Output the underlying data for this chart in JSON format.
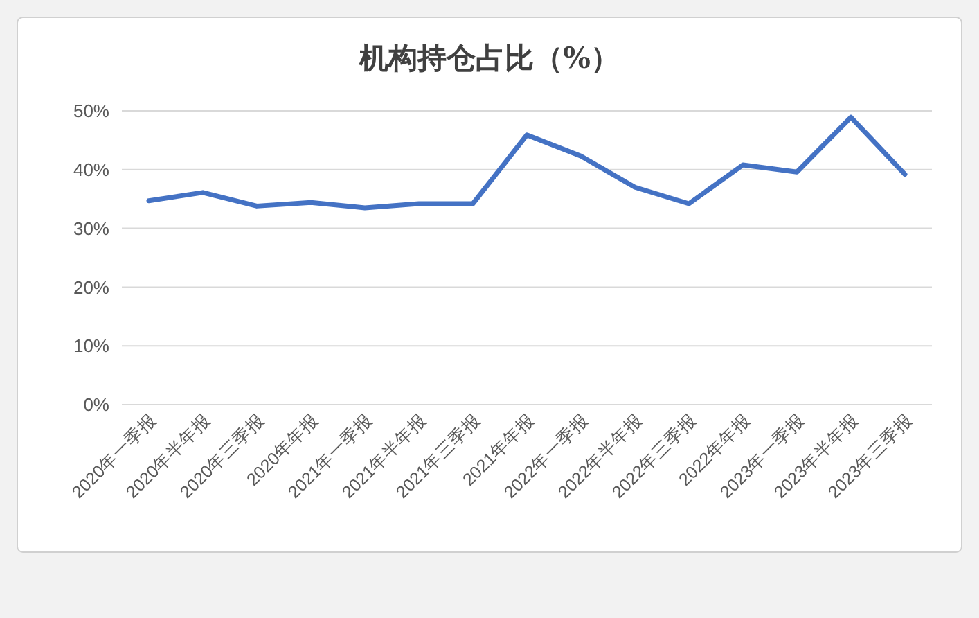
{
  "chart_data": {
    "type": "line",
    "title": "机构持仓占比（%）",
    "categories": [
      "2020年一季报",
      "2020年半年报",
      "2020年三季报",
      "2020年年报",
      "2021年一季报",
      "2021年半年报",
      "2021年三季报",
      "2021年年报",
      "2022年一季报",
      "2022年半年报",
      "2022年三季报",
      "2022年年报",
      "2023年一季报",
      "2023年半年报",
      "2023年三季报"
    ],
    "values": [
      34.7,
      36.1,
      33.8,
      34.4,
      33.5,
      34.2,
      34.2,
      45.9,
      42.3,
      37.0,
      34.2,
      40.8,
      39.6,
      48.9,
      39.2
    ],
    "color": "#4472c4",
    "ylim": [
      0,
      50
    ],
    "yticks": [
      {
        "value": 0,
        "label": "0%"
      },
      {
        "value": 10,
        "label": "10%"
      },
      {
        "value": 20,
        "label": "20%"
      },
      {
        "value": 30,
        "label": "30%"
      },
      {
        "value": 40,
        "label": "40%"
      },
      {
        "value": 50,
        "label": "50%"
      }
    ],
    "grid": "y"
  }
}
